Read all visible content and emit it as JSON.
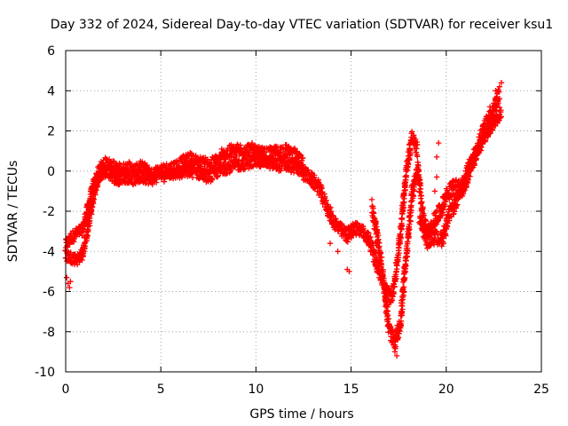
{
  "chart_data": {
    "type": "scatter",
    "title": "Day 332 of 2024, Sidereal Day-to-day VTEC variation (SDTVAR) for receiver ksu1",
    "xlabel": "GPS time / hours",
    "ylabel": "SDTVAR / TECUs",
    "xlim": [
      0,
      25
    ],
    "ylim": [
      -10,
      6
    ],
    "x_ticks": [
      "0",
      "5",
      "10",
      "15",
      "20",
      "25"
    ],
    "y_ticks": [
      "-10",
      "-8",
      "-6",
      "-4",
      "-2",
      "0",
      "2",
      "4",
      "6"
    ],
    "grid": true,
    "marker": "+",
    "color": "#ff0000",
    "series": [
      {
        "name": "SDTVAR",
        "bands": [
          {
            "x": [
              0.0,
              0.3,
              0.6,
              0.9,
              1.2,
              1.5,
              1.8,
              2.1,
              2.4,
              2.7,
              3.0,
              3.3,
              3.6,
              3.9,
              4.2,
              4.5,
              4.8,
              5.1
            ],
            "y": [
              -3.7,
              -3.3,
              -3.1,
              -2.9,
              -1.7,
              -0.6,
              0.1,
              0.4,
              0.3,
              0.1,
              0.1,
              0.2,
              0.0,
              0.2,
              0.1,
              -0.2,
              0.0,
              -0.1
            ],
            "spread": 0.6
          },
          {
            "x": [
              0.0,
              0.3,
              0.6,
              0.9,
              1.2,
              1.5,
              1.8,
              2.1,
              2.4,
              2.7,
              3.0,
              3.3,
              3.6,
              3.9,
              4.2,
              4.5,
              4.8
            ],
            "y": [
              -4.2,
              -4.3,
              -4.4,
              -4.1,
              -2.7,
              -1.1,
              -0.2,
              0.0,
              -0.2,
              -0.4,
              -0.3,
              -0.3,
              -0.4,
              -0.3,
              -0.3,
              -0.4,
              -0.3
            ],
            "spread": 0.6
          },
          {
            "x": [
              5.0,
              5.5,
              6.0,
              6.5,
              7.0,
              7.5,
              8.0,
              8.5,
              9.0,
              9.5,
              10.0,
              10.5,
              11.0,
              11.5,
              12.0,
              12.5
            ],
            "y": [
              0.0,
              0.1,
              0.3,
              0.6,
              0.4,
              0.3,
              0.5,
              0.9,
              1.0,
              1.1,
              0.9,
              0.8,
              0.9,
              1.0,
              0.8,
              0.3
            ],
            "spread": 0.7
          },
          {
            "x": [
              5.0,
              5.5,
              6.0,
              6.5,
              7.0,
              7.5,
              8.0,
              8.5,
              9.0,
              9.5,
              10.0,
              10.5,
              11.0,
              11.5,
              12.0,
              12.5
            ],
            "y": [
              -0.3,
              -0.1,
              -0.1,
              0.0,
              -0.1,
              -0.3,
              0.0,
              0.2,
              0.3,
              0.4,
              0.5,
              0.5,
              0.3,
              0.3,
              0.2,
              0.0
            ],
            "spread": 0.6
          },
          {
            "x": [
              12.5,
              12.9,
              13.3,
              13.7,
              14.0,
              14.4,
              14.8,
              15.2,
              15.6,
              16.0,
              16.4,
              16.8,
              17.1,
              17.3,
              17.6,
              17.9,
              18.2,
              18.5
            ],
            "y": [
              -0.1,
              -0.4,
              -0.8,
              -1.7,
              -2.4,
              -2.9,
              -3.2,
              -2.8,
              -3.0,
              -3.5,
              -4.8,
              -5.9,
              -6.3,
              -5.5,
              -3.0,
              0.0,
              1.7,
              1.0
            ],
            "spread": 0.7
          },
          {
            "x": [
              16.1,
              16.4,
              16.7,
              17.0,
              17.3,
              17.6,
              17.9,
              18.2,
              18.5,
              18.8,
              19.1,
              19.4,
              19.7,
              20.0,
              20.4,
              20.8,
              21.2,
              21.6,
              22.0,
              22.4,
              22.8
            ],
            "y": [
              -1.8,
              -3.4,
              -5.4,
              -7.9,
              -8.6,
              -7.5,
              -4.2,
              -1.2,
              0.2,
              -2.5,
              -3.2,
              -2.4,
              -2.0,
              -1.2,
              -0.8,
              -0.9,
              0.2,
              1.0,
              2.1,
              2.9,
              3.8
            ],
            "spread": 0.8
          },
          {
            "x": [
              18.6,
              19.0,
              19.4,
              19.8,
              20.2,
              20.6,
              21.0,
              21.4,
              21.8,
              22.2,
              22.6,
              22.9
            ],
            "y": [
              -2.3,
              -3.5,
              -3.3,
              -3.4,
              -2.1,
              -1.4,
              -0.6,
              0.5,
              1.3,
              2.0,
              2.6,
              3.0
            ],
            "spread": 0.7
          }
        ],
        "points": [
          {
            "x": 0.05,
            "y": -5.3
          },
          {
            "x": 0.12,
            "y": -5.6
          },
          {
            "x": 0.2,
            "y": -5.8
          },
          {
            "x": 0.25,
            "y": -5.5
          },
          {
            "x": 14.9,
            "y": -5.0
          },
          {
            "x": 14.8,
            "y": -4.9
          },
          {
            "x": 17.3,
            "y": -9.0
          },
          {
            "x": 17.4,
            "y": -9.2
          },
          {
            "x": 16.3,
            "y": -3.6
          },
          {
            "x": 19.6,
            "y": 1.4
          },
          {
            "x": 19.5,
            "y": 0.7
          },
          {
            "x": 19.5,
            "y": -0.3
          },
          {
            "x": 19.4,
            "y": -1.0
          },
          {
            "x": 22.9,
            "y": 4.4
          },
          {
            "x": 22.8,
            "y": 4.2
          },
          {
            "x": 22.6,
            "y": 4.0
          },
          {
            "x": 22.3,
            "y": 3.2
          },
          {
            "x": 22.3,
            "y": 2.2
          },
          {
            "x": 13.9,
            "y": -3.6
          },
          {
            "x": 14.3,
            "y": -4.0
          },
          {
            "x": 8.2,
            "y": 1.1
          },
          {
            "x": 8.7,
            "y": 1.3
          },
          {
            "x": 9.8,
            "y": 1.4
          },
          {
            "x": 11.6,
            "y": 1.3
          }
        ]
      }
    ]
  }
}
